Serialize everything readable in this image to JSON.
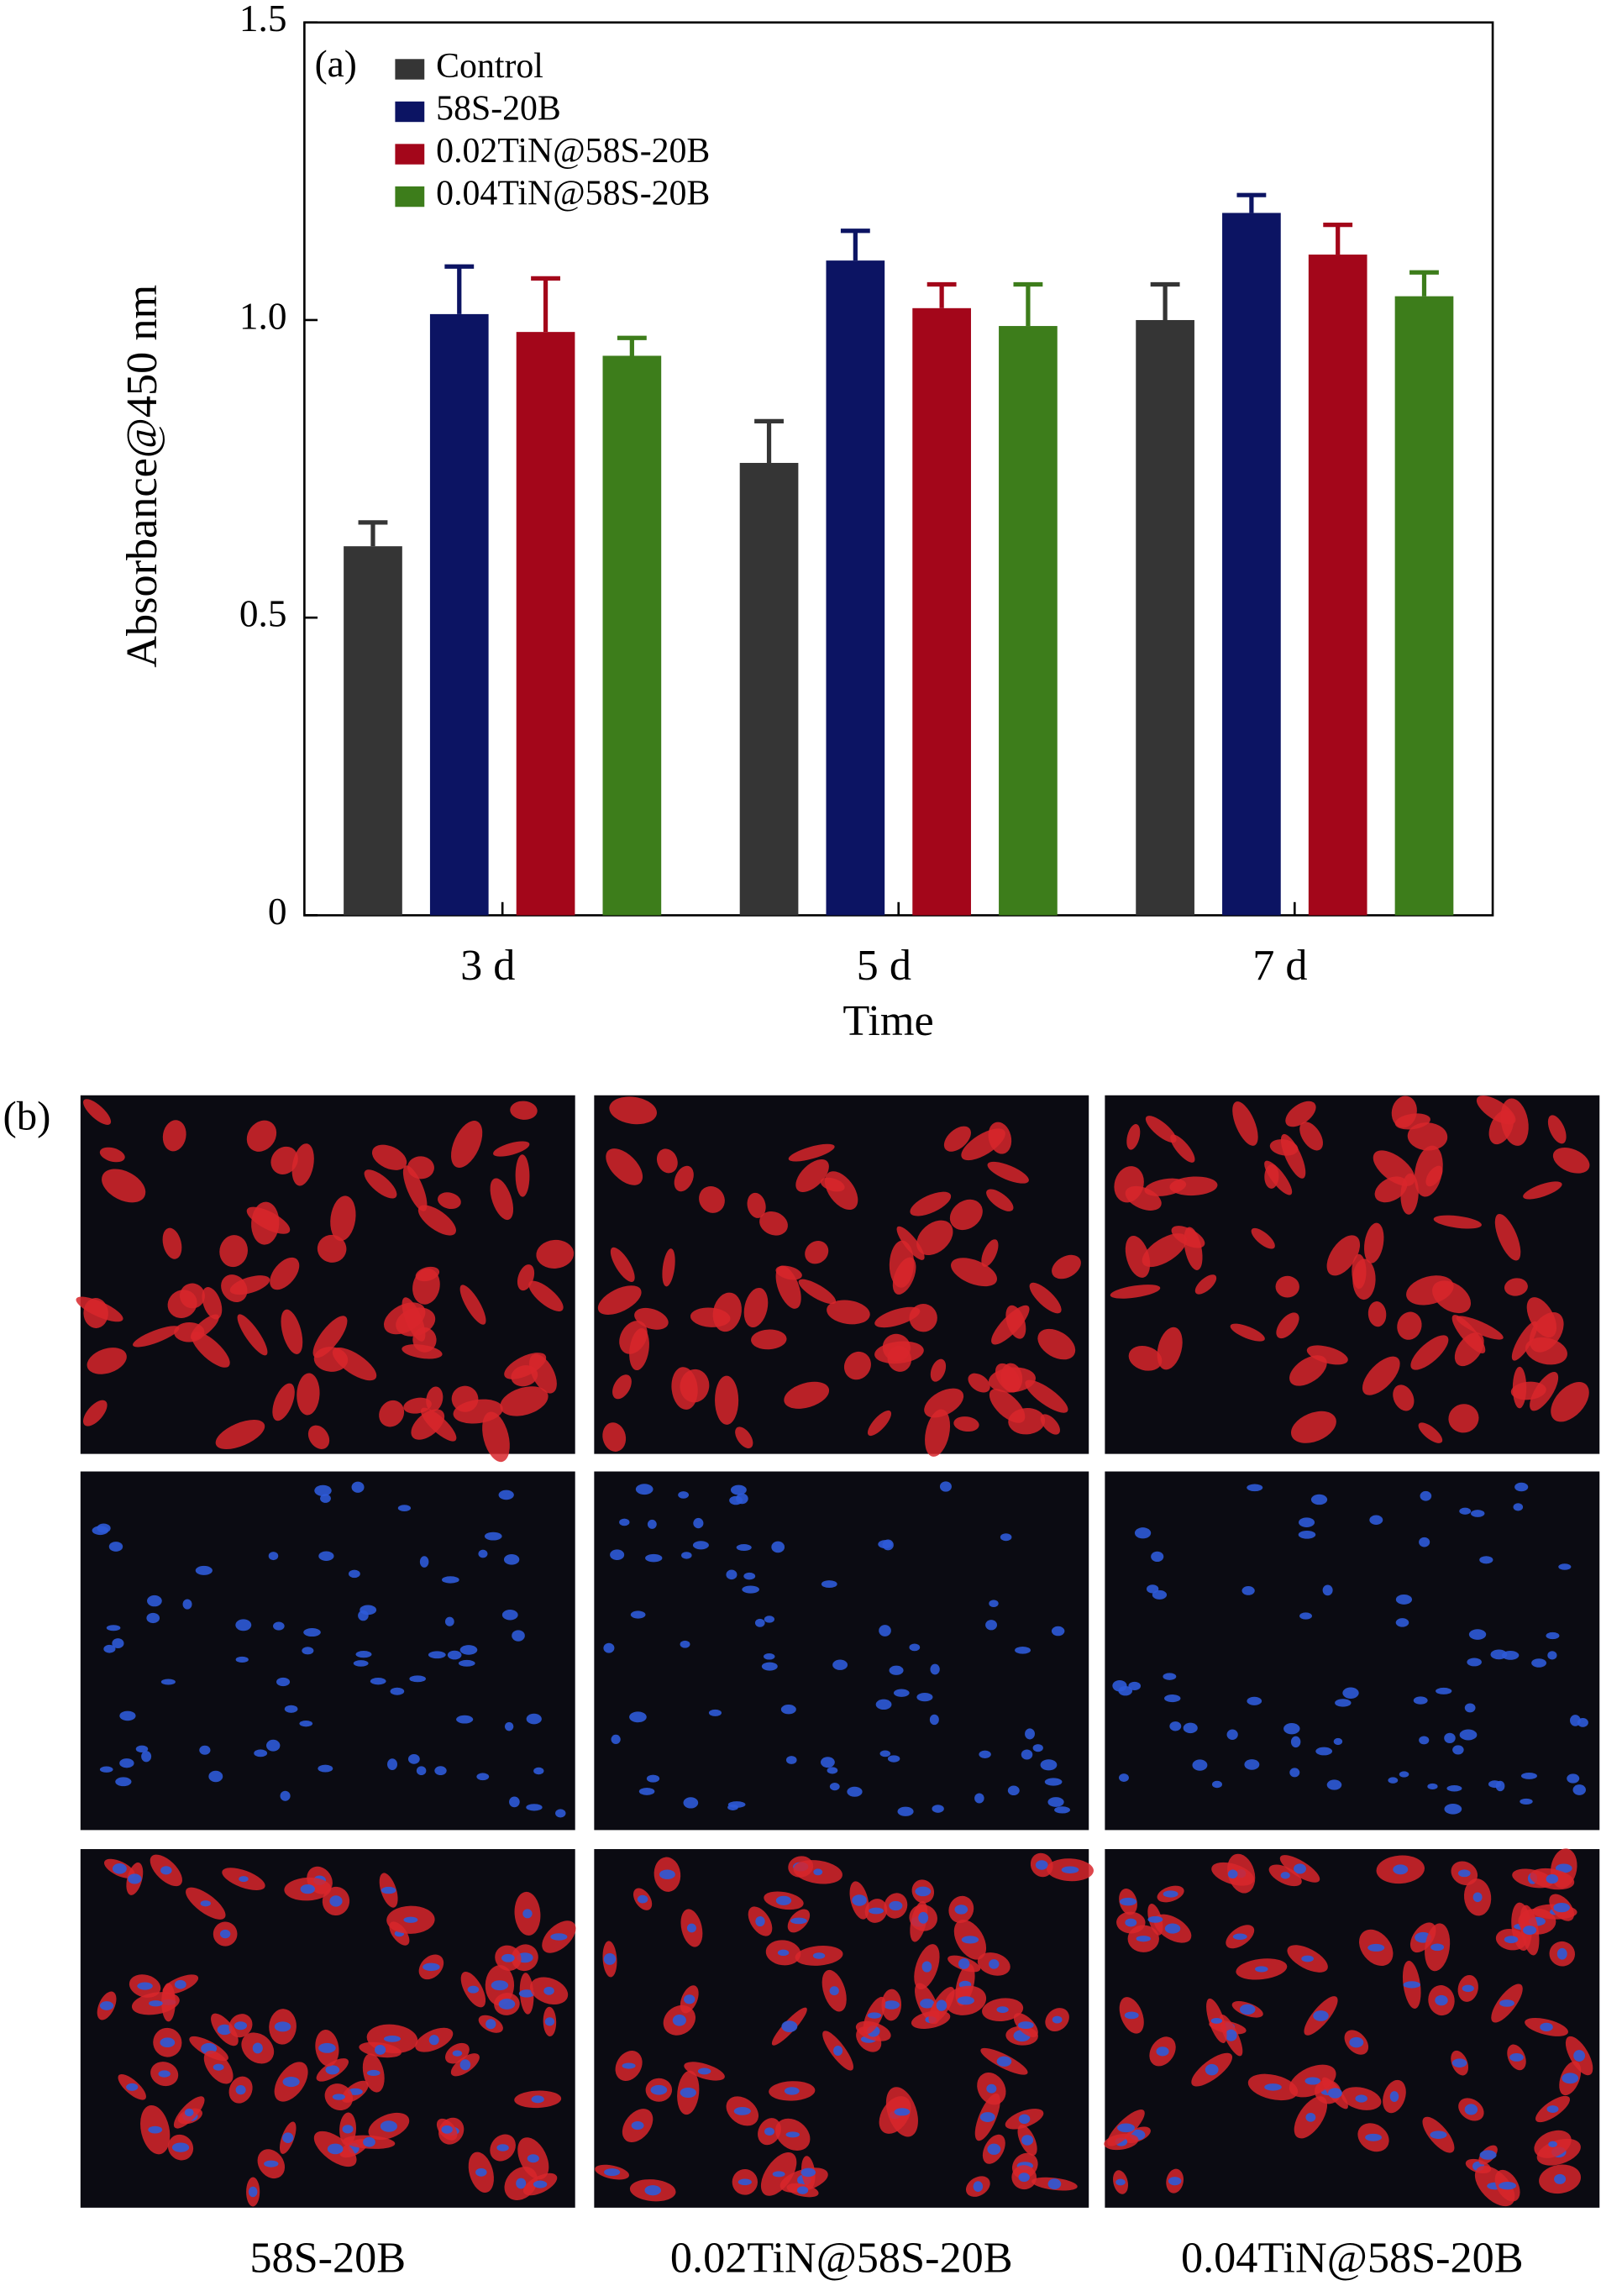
{
  "chart_data": {
    "type": "bar",
    "annotation": "(a)",
    "x_label": "Time",
    "y_label": "Absorbance@450 nm",
    "categories": [
      "3 d",
      "5 d",
      "7 d"
    ],
    "series": [
      {
        "name": "Control",
        "color": "#353535",
        "values": [
          0.62,
          0.76,
          1.0
        ],
        "errors": [
          0.04,
          0.07,
          0.06
        ]
      },
      {
        "name": "58S-20B",
        "color": "#0c1463",
        "values": [
          1.01,
          1.1,
          1.18
        ],
        "errors": [
          0.08,
          0.05,
          0.03
        ]
      },
      {
        "name": "0.02TiN@58S-20B",
        "color": "#a3061a",
        "values": [
          0.98,
          1.02,
          1.11
        ],
        "errors": [
          0.09,
          0.04,
          0.05
        ]
      },
      {
        "name": "0.04TiN@58S-20B",
        "color": "#3d7d1b",
        "values": [
          0.94,
          0.99,
          1.04
        ],
        "errors": [
          0.03,
          0.07,
          0.04
        ]
      }
    ],
    "ylim": [
      0,
      1.5
    ],
    "yticks": [
      0,
      0.5,
      {
        "value": 1,
        "label": "1.0"
      },
      1.5
    ],
    "legend": "upper-left"
  },
  "panel_b": {
    "label": "(b)",
    "columns": [
      "58S-20B",
      "0.02TiN@58S-20B",
      "0.04TiN@58S-20B"
    ]
  }
}
